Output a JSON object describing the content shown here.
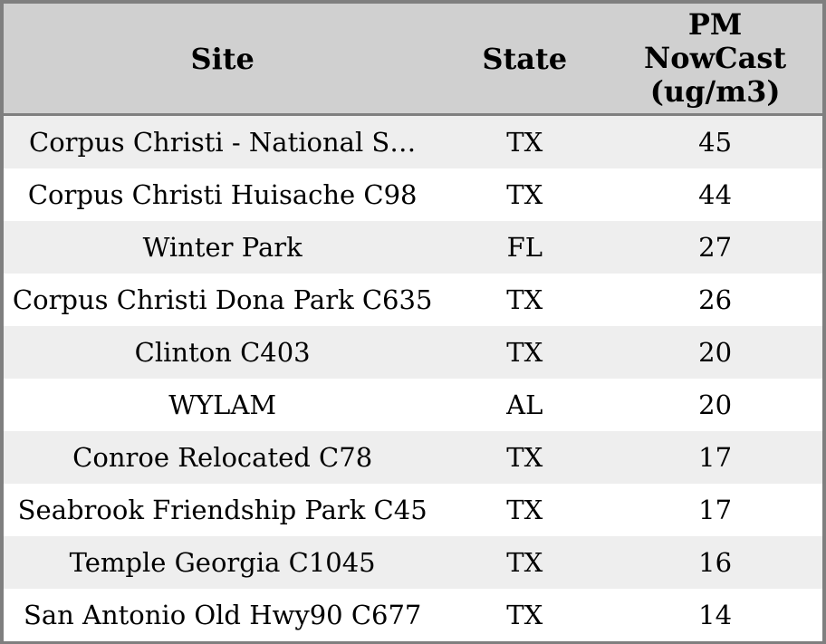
{
  "chart_data": {
    "type": "table",
    "columns": [
      "Site",
      "State",
      "PM NowCast (ug/m3)"
    ],
    "rows": [
      {
        "site": "Corpus Christi - National S…",
        "state": "TX",
        "pm_nowcast": "45"
      },
      {
        "site": "Corpus Christi Huisache C98",
        "state": "TX",
        "pm_nowcast": "44"
      },
      {
        "site": "Winter Park",
        "state": "FL",
        "pm_nowcast": "27"
      },
      {
        "site": "Corpus Christi Dona Park C635",
        "state": "TX",
        "pm_nowcast": "26"
      },
      {
        "site": "Clinton C403",
        "state": "TX",
        "pm_nowcast": "20"
      },
      {
        "site": "WYLAM",
        "state": "AL",
        "pm_nowcast": "20"
      },
      {
        "site": "Conroe Relocated C78",
        "state": "TX",
        "pm_nowcast": "17"
      },
      {
        "site": "Seabrook Friendship Park C45",
        "state": "TX",
        "pm_nowcast": "17"
      },
      {
        "site": "Temple Georgia C1045",
        "state": "TX",
        "pm_nowcast": "16"
      },
      {
        "site": "San Antonio Old Hwy90 C677",
        "state": "TX",
        "pm_nowcast": "14"
      }
    ]
  },
  "colors": {
    "header_bg": "#d0d0d0",
    "stripe_bg": "#eeeeee",
    "row_bg": "#ffffff",
    "border": "#7f7f7f",
    "text": "#000000"
  }
}
